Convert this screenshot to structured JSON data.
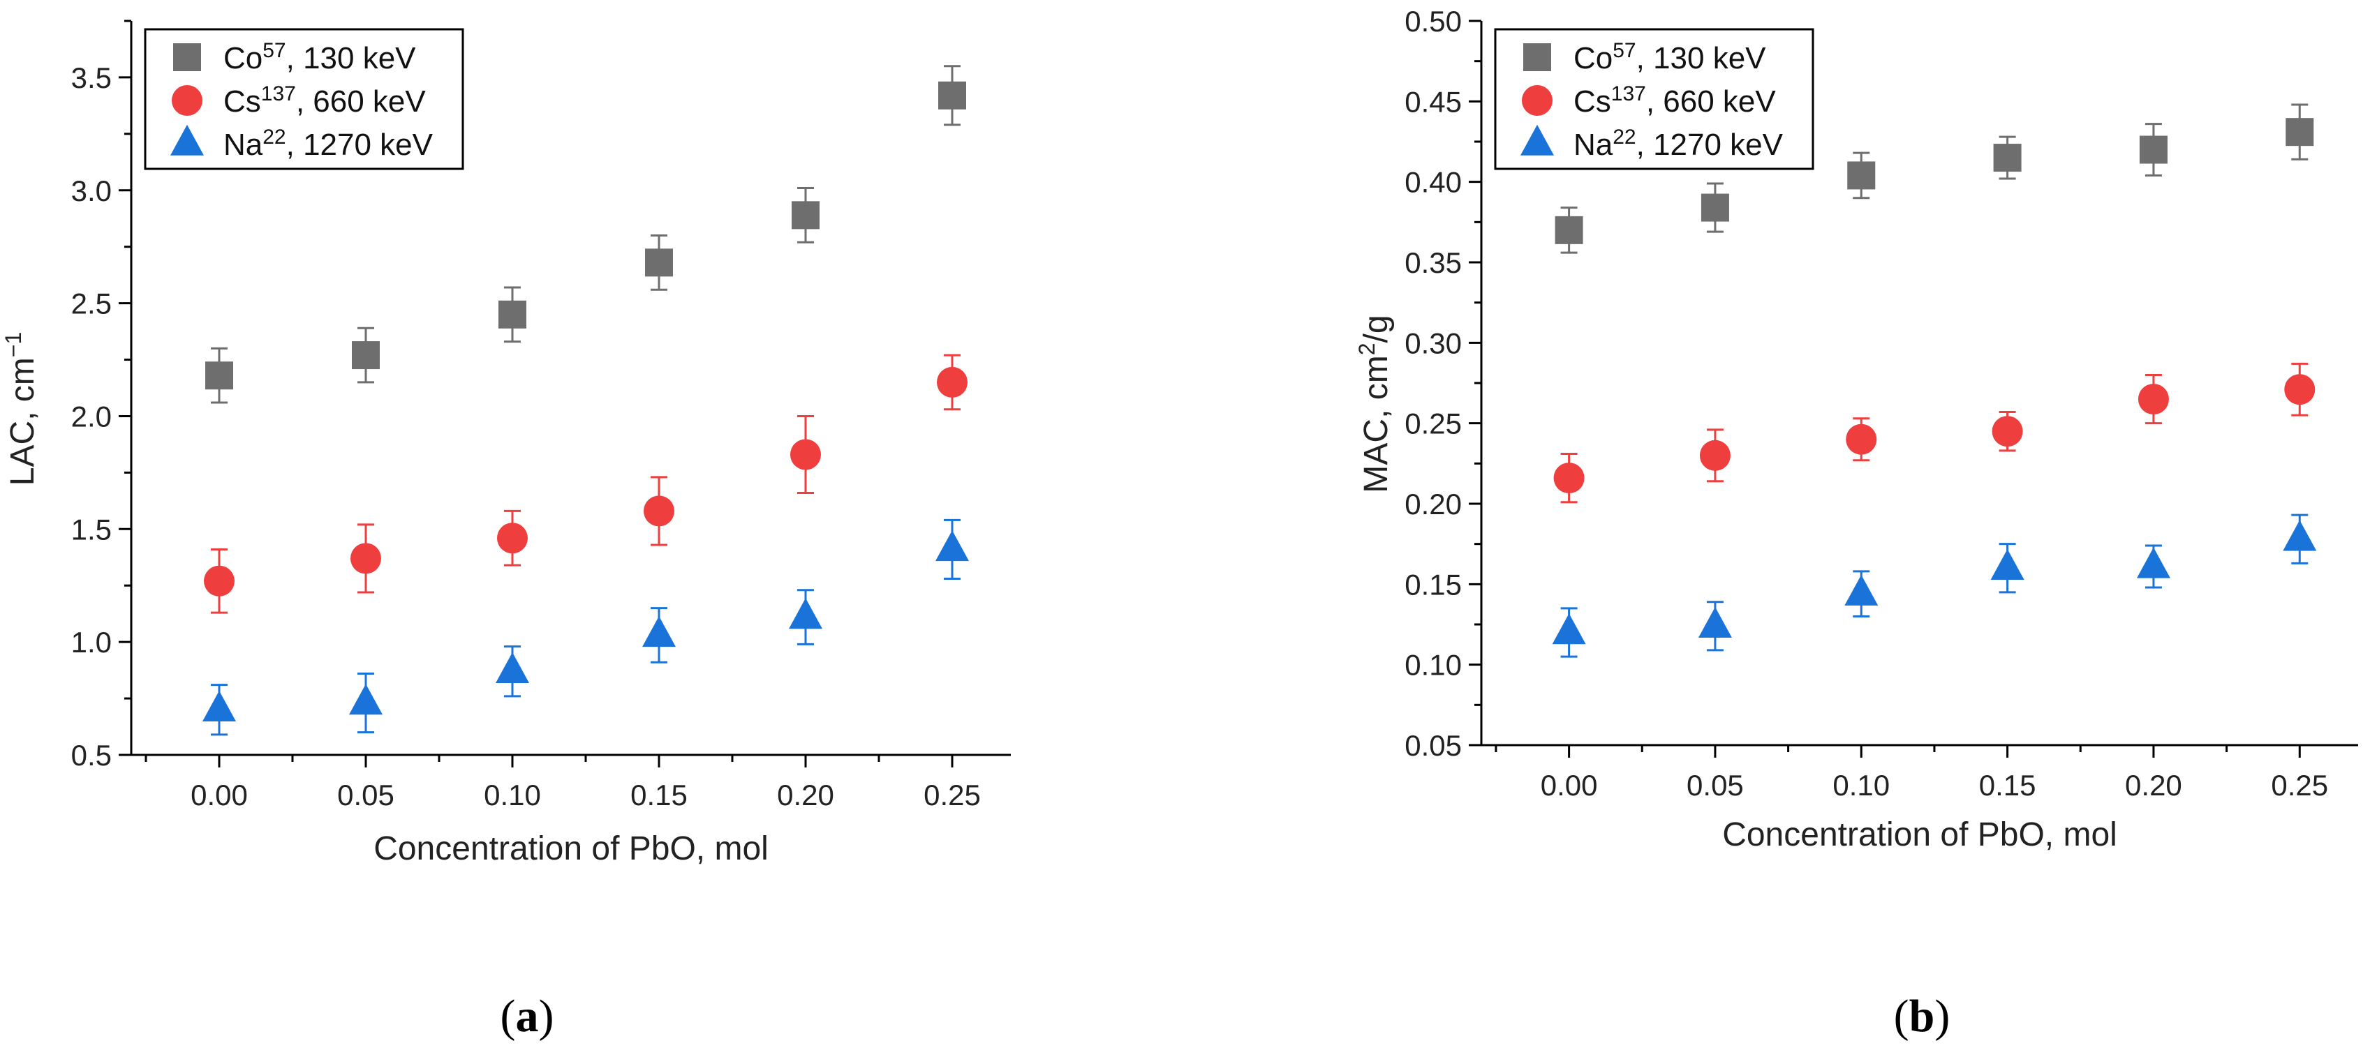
{
  "chart_data": [
    {
      "type": "scatter",
      "title": "",
      "xlabel": "Concentration of PbO, mol",
      "ylabel_main": "LAC, cm",
      "ylabel_sup": "−1",
      "x": [
        0.0,
        0.05,
        0.1,
        0.15,
        0.2,
        0.25
      ],
      "x_tick_labels": [
        "0.00",
        "0.05",
        "0.10",
        "0.15",
        "0.20",
        "0.25"
      ],
      "xlim": [
        -0.03,
        0.27
      ],
      "ylim": [
        0.5,
        3.75
      ],
      "y_ticks": [
        0.5,
        1.0,
        1.5,
        2.0,
        2.5,
        3.0,
        3.5
      ],
      "y_tick_labels": [
        "0.5",
        "1.0",
        "1.5",
        "2.0",
        "2.5",
        "3.0",
        "3.5"
      ],
      "legend_position": "top-left",
      "panel_label": "a",
      "series": [
        {
          "name_base": "Co",
          "name_sup": "57",
          "name_rest": ", 130 keV",
          "marker": "square",
          "color": "#6e6e6e",
          "values": [
            2.18,
            2.27,
            2.45,
            2.68,
            2.89,
            3.42
          ],
          "errors": [
            0.12,
            0.12,
            0.12,
            0.12,
            0.12,
            0.13
          ]
        },
        {
          "name_base": "Cs",
          "name_sup": "137",
          "name_rest": ", 660 keV",
          "marker": "circle",
          "color": "#ef3e3e",
          "values": [
            1.27,
            1.37,
            1.46,
            1.58,
            1.83,
            2.15
          ],
          "errors": [
            0.14,
            0.15,
            0.12,
            0.15,
            0.17,
            0.12
          ]
        },
        {
          "name_base": "Na",
          "name_sup": "22",
          "name_rest": ", 1270 keV",
          "marker": "triangle",
          "color": "#1a73d9",
          "values": [
            0.7,
            0.73,
            0.87,
            1.03,
            1.11,
            1.41
          ],
          "errors": [
            0.11,
            0.13,
            0.11,
            0.12,
            0.12,
            0.13
          ]
        }
      ]
    },
    {
      "type": "scatter",
      "title": "",
      "xlabel": "Concentration of PbO, mol",
      "ylabel_main": "MAC, cm",
      "ylabel_sup": "2",
      "ylabel_tail": "/g",
      "x": [
        0.0,
        0.05,
        0.1,
        0.15,
        0.2,
        0.25
      ],
      "x_tick_labels": [
        "0.00",
        "0.05",
        "0.10",
        "0.15",
        "0.20",
        "0.25"
      ],
      "xlim": [
        -0.03,
        0.27
      ],
      "ylim": [
        0.05,
        0.5
      ],
      "y_ticks": [
        0.05,
        0.1,
        0.15,
        0.2,
        0.25,
        0.3,
        0.35,
        0.4,
        0.45,
        0.5
      ],
      "y_tick_labels": [
        "0.05",
        "0.10",
        "0.15",
        "0.20",
        "0.25",
        "0.30",
        "0.35",
        "0.40",
        "0.45",
        "0.50"
      ],
      "legend_position": "top-left",
      "panel_label": "b",
      "series": [
        {
          "name_base": "Co",
          "name_sup": "57",
          "name_rest": ", 130 keV",
          "marker": "square",
          "color": "#6e6e6e",
          "values": [
            0.37,
            0.384,
            0.404,
            0.415,
            0.42,
            0.431
          ],
          "errors": [
            0.014,
            0.015,
            0.014,
            0.013,
            0.016,
            0.017
          ]
        },
        {
          "name_base": "Cs",
          "name_sup": "137",
          "name_rest": ", 660 keV",
          "marker": "circle",
          "color": "#ef3e3e",
          "values": [
            0.216,
            0.23,
            0.24,
            0.245,
            0.265,
            0.271
          ],
          "errors": [
            0.015,
            0.016,
            0.013,
            0.012,
            0.015,
            0.016
          ]
        },
        {
          "name_base": "Na",
          "name_sup": "22",
          "name_rest": ", 1270 keV",
          "marker": "triangle",
          "color": "#1a73d9",
          "values": [
            0.12,
            0.124,
            0.144,
            0.16,
            0.161,
            0.178
          ],
          "errors": [
            0.015,
            0.015,
            0.014,
            0.015,
            0.013,
            0.015
          ]
        }
      ]
    }
  ]
}
